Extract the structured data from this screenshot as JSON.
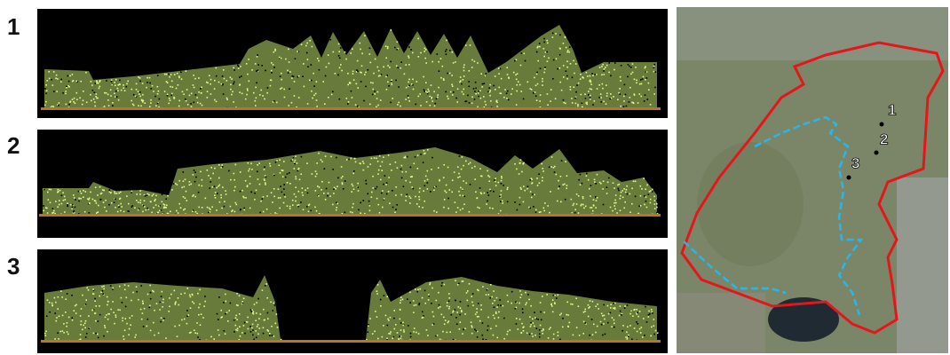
{
  "profiles": [
    {
      "label": "1"
    },
    {
      "label": "2"
    },
    {
      "label": "3"
    }
  ],
  "map": {
    "points": [
      {
        "label": "1"
      },
      {
        "label": "2"
      },
      {
        "label": "3"
      }
    ]
  }
}
